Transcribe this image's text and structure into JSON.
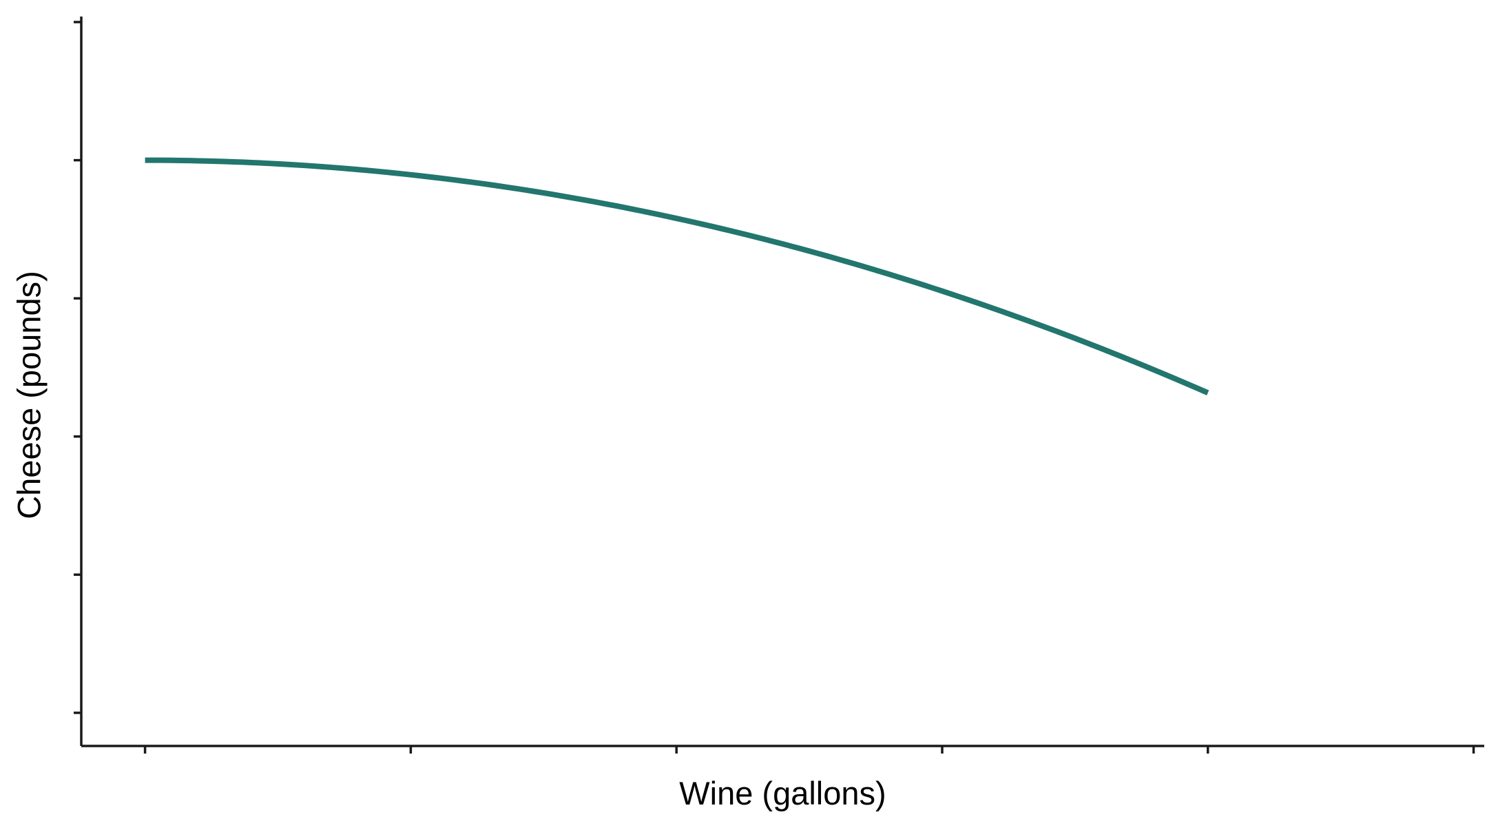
{
  "chart_data": {
    "type": "line",
    "title": "",
    "xlabel": "Wine (gallons)",
    "ylabel": "Cheese (pounds)",
    "xlim": [
      -0.24,
      5.04
    ],
    "ylim": [
      -0.24,
      5.04
    ],
    "x_ticks": [
      0,
      1,
      2,
      3,
      4,
      5
    ],
    "y_ticks": [
      0,
      1,
      2,
      3,
      4,
      5
    ],
    "x_tick_labels": [],
    "y_tick_labels": [],
    "grid": false,
    "legend": "none",
    "line_color": "#22766d",
    "series": [
      {
        "x": [
          0,
          0.25,
          0.5,
          0.75,
          1,
          1.25,
          1.5,
          1.75,
          2,
          2.25,
          2.5,
          2.75,
          3,
          3.25,
          3.5,
          3.75,
          4
        ],
        "y": [
          4,
          3.996,
          3.984,
          3.963,
          3.932,
          3.89,
          3.835,
          3.766,
          3.682,
          3.581,
          3.46,
          3.319,
          3.156,
          2.97,
          2.758,
          2.52,
          2.629
        ]
      }
    ]
  }
}
